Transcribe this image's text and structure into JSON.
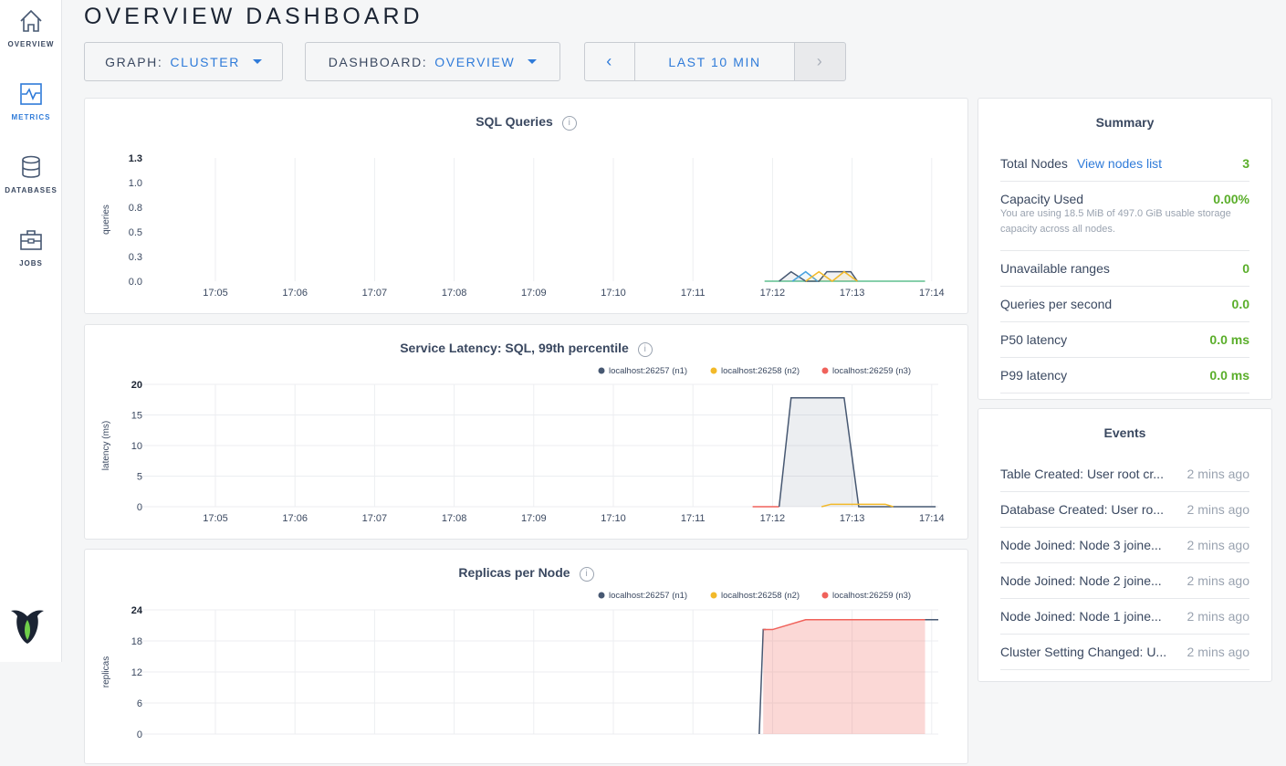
{
  "sidebar": {
    "items": [
      {
        "label": "OVERVIEW",
        "icon": "home-icon"
      },
      {
        "label": "METRICS",
        "icon": "metrics-icon",
        "active": true
      },
      {
        "label": "DATABASES",
        "icon": "database-icon"
      },
      {
        "label": "JOBS",
        "icon": "briefcase-icon"
      }
    ]
  },
  "page_title": "OVERVIEW DASHBOARD",
  "controls": {
    "graph_label": "GRAPH:",
    "graph_value": "CLUSTER",
    "dashboard_label": "DASHBOARD:",
    "dashboard_value": "OVERVIEW",
    "time_range": "LAST 10 MIN",
    "prev": "‹",
    "next": "›"
  },
  "colors": {
    "accent": "#2f7bd9",
    "n1": "#475872",
    "n2": "#f2b929",
    "n3": "#f0625b",
    "n_blue": "#4aa3df",
    "n_green": "#5fbf8f",
    "good": "#5aae2a"
  },
  "chart_data": [
    {
      "type": "line",
      "title": "SQL Queries",
      "ylabel": "queries",
      "ylim": [
        0,
        1.3
      ],
      "yticks": [
        "0.0",
        "0.3",
        "0.5",
        "0.8",
        "1.0",
        "1.3"
      ],
      "ytick_values": [
        0,
        0.325,
        0.65,
        0.975,
        1.3,
        1.3
      ],
      "xticks": [
        "17:05",
        "17:06",
        "17:07",
        "17:08",
        "17:09",
        "17:10",
        "17:11",
        "17:12",
        "17:13",
        "17:14"
      ],
      "legend": [],
      "series": [
        {
          "color": "#5fbf8f",
          "points": [
            [
              "17:11:54",
              0
            ],
            [
              "17:13:55",
              0
            ]
          ]
        },
        {
          "color": "#475872",
          "points": [
            [
              "17:12:05",
              0
            ],
            [
              "17:12:14",
              0.1
            ],
            [
              "17:12:25",
              0
            ],
            [
              "17:12:35",
              0
            ],
            [
              "17:12:41",
              0.1
            ],
            [
              "17:12:59",
              0.1
            ],
            [
              "17:13:04",
              0
            ]
          ]
        },
        {
          "color": "#4aa3df",
          "points": [
            [
              "17:12:15",
              0
            ],
            [
              "17:12:25",
              0.1
            ],
            [
              "17:12:34",
              0
            ]
          ]
        },
        {
          "color": "#f2b929",
          "points": [
            [
              "17:12:25",
              0
            ],
            [
              "17:12:35",
              0.1
            ],
            [
              "17:12:45",
              0
            ],
            [
              "17:12:54",
              0.1
            ],
            [
              "17:13:04",
              0
            ]
          ]
        }
      ]
    },
    {
      "type": "area",
      "title": "Service Latency: SQL, 99th percentile",
      "ylabel": "latency (ms)",
      "ylim": [
        0,
        20
      ],
      "yticks": [
        "0",
        "5",
        "10",
        "15",
        "20"
      ],
      "ytick_values": [
        0,
        5,
        10,
        15,
        20
      ],
      "xticks": [
        "17:05",
        "17:06",
        "17:07",
        "17:08",
        "17:09",
        "17:10",
        "17:11",
        "17:12",
        "17:13",
        "17:14"
      ],
      "legend": [
        {
          "name": "localhost:26257 (n1)",
          "color": "#475872"
        },
        {
          "name": "localhost:26258 (n2)",
          "color": "#f2b929"
        },
        {
          "name": "localhost:26259 (n3)",
          "color": "#f0625b"
        }
      ],
      "series": [
        {
          "name": "localhost:26259 (n3)",
          "color": "#f0625b",
          "points": [
            [
              "17:11:45",
              0
            ],
            [
              "17:12:05",
              0
            ]
          ]
        },
        {
          "name": "localhost:26257 (n1)",
          "color": "#475872",
          "fill": true,
          "points": [
            [
              "17:12:05",
              0
            ],
            [
              "17:12:14",
              17.8
            ],
            [
              "17:12:54",
              17.8
            ],
            [
              "17:13:05",
              0
            ],
            [
              "17:14:03",
              0
            ]
          ]
        },
        {
          "name": "localhost:26258 (n2)",
          "color": "#f2b929",
          "points": [
            [
              "17:12:37",
              0
            ],
            [
              "17:12:44",
              0.4
            ],
            [
              "17:13:25",
              0.4
            ],
            [
              "17:13:31",
              0
            ]
          ]
        }
      ]
    },
    {
      "type": "area",
      "title": "Replicas per Node",
      "ylabel": "replicas",
      "ylim": [
        0,
        24
      ],
      "yticks": [
        "0",
        "6",
        "12",
        "18",
        "24"
      ],
      "ytick_values": [
        0,
        6,
        12,
        18,
        24
      ],
      "xticks": [],
      "legend": [
        {
          "name": "localhost:26257 (n1)",
          "color": "#475872"
        },
        {
          "name": "localhost:26258 (n2)",
          "color": "#f2b929"
        },
        {
          "name": "localhost:26259 (n3)",
          "color": "#f0625b"
        }
      ],
      "series": [
        {
          "name": "localhost:26257 (n1)",
          "color": "#475872",
          "points": [
            [
              "17:11:50",
              0
            ],
            [
              "17:11:53",
              20.2
            ],
            [
              "17:11:55",
              20.2
            ]
          ]
        },
        {
          "name": "localhost:26259 (n3)",
          "color": "#f0625b",
          "fill": true,
          "points": [
            [
              "17:11:53",
              20.2
            ],
            [
              "17:12:00",
              20.2
            ],
            [
              "17:12:25",
              22.1
            ],
            [
              "17:13:55",
              22.1
            ]
          ]
        },
        {
          "name": "localhost:26257 (n1)",
          "color": "#475872",
          "points": [
            [
              "17:13:55",
              22.1
            ],
            [
              "17:14:05",
              22.1
            ]
          ]
        }
      ]
    }
  ],
  "summary": {
    "title": "Summary",
    "total_nodes_label": "Total Nodes",
    "view_nodes": "View nodes list",
    "total_nodes": "3",
    "capacity_label": "Capacity Used",
    "capacity": "0.00%",
    "capacity_note": "You are using 18.5 MiB of 497.0 GiB usable storage capacity across all nodes.",
    "rows": [
      {
        "label": "Unavailable ranges",
        "value": "0"
      },
      {
        "label": "Queries per second",
        "value": "0.0"
      },
      {
        "label": "P50 latency",
        "value": "0.0 ms"
      },
      {
        "label": "P99 latency",
        "value": "0.0 ms"
      }
    ]
  },
  "events": {
    "title": "Events",
    "items": [
      {
        "text": "Table Created: User root cr...",
        "time": "2 mins ago"
      },
      {
        "text": "Database Created: User ro...",
        "time": "2 mins ago"
      },
      {
        "text": "Node Joined: Node 3 joine...",
        "time": "2 mins ago"
      },
      {
        "text": "Node Joined: Node 2 joine...",
        "time": "2 mins ago"
      },
      {
        "text": "Node Joined: Node 1 joine...",
        "time": "2 mins ago"
      },
      {
        "text": "Cluster Setting Changed: U...",
        "time": "2 mins ago"
      }
    ]
  }
}
